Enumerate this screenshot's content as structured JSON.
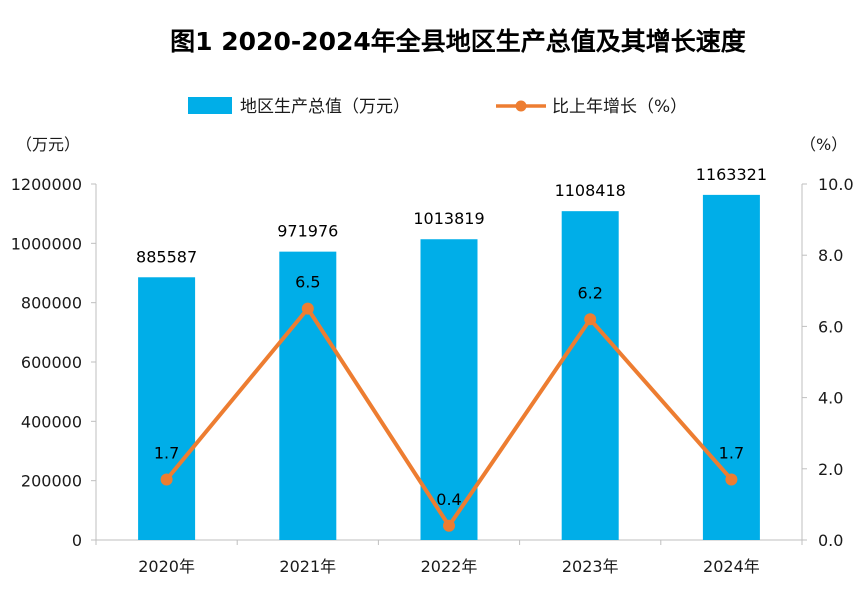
{
  "chart_data": {
    "type": "bar+line",
    "title": "图1  2020-2024年全县地区生产总值及其增长速度",
    "categories": [
      "2020年",
      "2021年",
      "2022年",
      "2023年",
      "2024年"
    ],
    "series": [
      {
        "name": "地区生产总值（万元）",
        "type": "bar",
        "axis": "left",
        "color": "#00aee8",
        "values": [
          885587,
          971976,
          1013819,
          1108418,
          1163321
        ],
        "labels": [
          "885587",
          "971976",
          "1013819",
          "1108418",
          "1163321"
        ]
      },
      {
        "name": "比上年增长（%）",
        "type": "line",
        "axis": "right",
        "color": "#ed7d31",
        "values": [
          1.7,
          6.5,
          0.4,
          6.2,
          1.7
        ],
        "labels": [
          "1.7",
          "6.5",
          "0.4",
          "6.2",
          "1.7"
        ]
      }
    ],
    "y_left": {
      "unit": "（万元）",
      "ylim": [
        0,
        1200000
      ],
      "ticks": [
        "0",
        "200000",
        "400000",
        "600000",
        "800000",
        "1000000",
        "1200000"
      ]
    },
    "y_right": {
      "unit": "（%）",
      "ylim": [
        0,
        10
      ],
      "ticks": [
        "0.0",
        "2.0",
        "4.0",
        "6.0",
        "8.0",
        "10.0"
      ]
    },
    "grid": false,
    "legend_position": "top-center"
  }
}
